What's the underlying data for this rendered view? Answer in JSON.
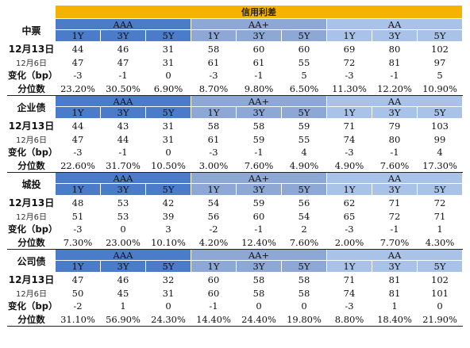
{
  "title": "信用利差",
  "groups": [
    "AAA",
    "AA+",
    "AA"
  ],
  "tenors": [
    "1Y",
    "3Y",
    "5Y"
  ],
  "sections": [
    {
      "name": "中票",
      "rows": [
        {
          "label": "12月13日",
          "values": [
            "44",
            "46",
            "31",
            "58",
            "60",
            "60",
            "69",
            "80",
            "102"
          ]
        },
        {
          "label": "12月6日",
          "values": [
            "47",
            "47",
            "31",
            "61",
            "61",
            "55",
            "72",
            "81",
            "97"
          ]
        },
        {
          "label": "变化（bp）",
          "values": [
            "-3",
            "-1",
            "0",
            "-3",
            "-1",
            "5",
            "-3",
            "-1",
            "5"
          ]
        },
        {
          "label": "分位数",
          "values": [
            "23.20%",
            "30.50%",
            "6.90%",
            "8.70%",
            "9.80%",
            "6.50%",
            "11.30%",
            "12.20%",
            "10.90%"
          ]
        }
      ]
    },
    {
      "name": "企业债",
      "rows": [
        {
          "label": "12月13日",
          "values": [
            "44",
            "43",
            "31",
            "58",
            "58",
            "59",
            "71",
            "79",
            "103"
          ]
        },
        {
          "label": "12月6日",
          "values": [
            "47",
            "44",
            "31",
            "61",
            "59",
            "55",
            "74",
            "80",
            "99"
          ]
        },
        {
          "label": "变化（bp）",
          "values": [
            "-3",
            "-1",
            "0",
            "-3",
            "-1",
            "4",
            "-3",
            "-1",
            "4"
          ]
        },
        {
          "label": "分位数",
          "values": [
            "22.60%",
            "31.70%",
            "10.50%",
            "3.00%",
            "7.60%",
            "4.90%",
            "4.90%",
            "7.60%",
            "17.30%"
          ]
        }
      ]
    },
    {
      "name": "城投",
      "rows": [
        {
          "label": "12月13日",
          "values": [
            "48",
            "53",
            "42",
            "54",
            "59",
            "56",
            "62",
            "71",
            "72"
          ]
        },
        {
          "label": "12月6日",
          "values": [
            "51",
            "53",
            "39",
            "56",
            "60",
            "54",
            "65",
            "72",
            "71"
          ]
        },
        {
          "label": "变化（bp）",
          "values": [
            "-3",
            "0",
            "3",
            "-2",
            "-1",
            "2",
            "-3",
            "-1",
            "1"
          ]
        },
        {
          "label": "分位数",
          "values": [
            "7.30%",
            "23.00%",
            "10.10%",
            "4.20%",
            "12.40%",
            "7.60%",
            "2.00%",
            "7.70%",
            "4.30%"
          ]
        }
      ]
    },
    {
      "name": "公司债",
      "rows": [
        {
          "label": "12月13日",
          "values": [
            "47",
            "46",
            "32",
            "60",
            "58",
            "58",
            "71",
            "81",
            "102"
          ]
        },
        {
          "label": "12月6日",
          "values": [
            "50",
            "45",
            "31",
            "60",
            "58",
            "58",
            "74",
            "81",
            "101"
          ]
        },
        {
          "label": "变化（bp）",
          "values": [
            "-2",
            "1",
            "0",
            "-1",
            "0",
            "0",
            "-3",
            "1",
            "0"
          ]
        },
        {
          "label": "分位数",
          "values": [
            "31.10%",
            "56.90%",
            "24.30%",
            "14.40%",
            "24.40%",
            "19.80%",
            "8.80%",
            "18.40%",
            "21.90%"
          ]
        }
      ]
    }
  ],
  "colors": {
    "title_band": "#f5b300",
    "AAA": "#4a7cc9",
    "AA+": "#8ea8d6",
    "AA": "#a9c3e8"
  }
}
